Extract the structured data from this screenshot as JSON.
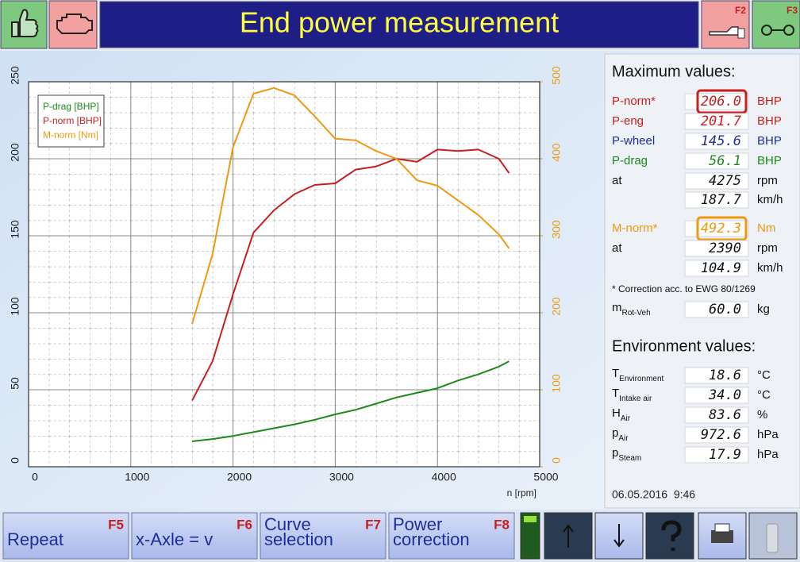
{
  "header": {
    "title": "End power measurement",
    "f2": "F2",
    "f3": "F3"
  },
  "chart_data": {
    "type": "line",
    "x_label": "n [rpm]",
    "x": [
      1600,
      1800,
      2000,
      2200,
      2400,
      2600,
      2800,
      3000,
      3200,
      3400,
      3600,
      3800,
      4000,
      4200,
      4400,
      4600,
      4700
    ],
    "series": [
      {
        "name": "P-drag [BHP]",
        "color": "#1a8a1a",
        "values": [
          16.5,
          18,
          20,
          22.5,
          25,
          27.5,
          30.5,
          34,
          37,
          41,
          45,
          48,
          51,
          56,
          60,
          65,
          68.5
        ]
      },
      {
        "name": "P-norm [BHP]",
        "color": "#c81e1e",
        "values": [
          43,
          68.5,
          112,
          152,
          166.5,
          177,
          183,
          184,
          193,
          195,
          200,
          198,
          206,
          205,
          206,
          200,
          190.7
        ]
      },
      {
        "name": "M-norm [Nm]",
        "color": "#ee9a10",
        "axis": "y2",
        "values": [
          185.6,
          276,
          415,
          484.5,
          492,
          482.5,
          455,
          426,
          424,
          410,
          400,
          372,
          365,
          346,
          327,
          302,
          283.5
        ]
      }
    ],
    "xlim": [
      0,
      5000
    ],
    "xticks": [
      0,
      1000,
      2000,
      3000,
      4000,
      5000
    ],
    "ylim": [
      0,
      250
    ],
    "yticks": [
      0,
      50,
      100,
      150,
      200,
      250
    ],
    "y2lim": [
      0,
      500
    ],
    "y2ticks": [
      0,
      100,
      200,
      300,
      400,
      500
    ],
    "y2color": "#ee9a10",
    "grid": true
  },
  "maximum": {
    "title": "Maximum values:",
    "rows": [
      {
        "label": "P-norm*",
        "value": "206.0",
        "unit": "BHP",
        "color": "#c81e1e",
        "highlight": true
      },
      {
        "label": "P-eng",
        "value": "201.7",
        "unit": "BHP",
        "color": "#c81e1e"
      },
      {
        "label": "P-wheel",
        "value": "145.6",
        "unit": "BHP",
        "color": "#1c2e9c"
      },
      {
        "label": "P-drag",
        "value": "56.1",
        "unit": "BHP",
        "color": "#1a8a1a"
      },
      {
        "label": "at",
        "value": "4275",
        "unit": "rpm",
        "color": "#111111"
      },
      {
        "label": null,
        "value": "187.7",
        "unit": "km/h",
        "color": "#111111"
      },
      {
        "label": "M-norm*",
        "value": "492.3",
        "unit": "Nm",
        "color": "#ee9a10",
        "highlight": true
      },
      {
        "label": "at",
        "value": "2390",
        "unit": "rpm",
        "color": "#111111"
      },
      {
        "label": null,
        "value": "104.9",
        "unit": "km/h",
        "color": "#111111"
      }
    ],
    "note": "* Correction acc. to EWG 80/1269",
    "mass": {
      "label": "m",
      "sub": "Rot-Veh",
      "value": "60.0",
      "unit": "kg"
    }
  },
  "environment": {
    "title": "Environment values:",
    "rows": [
      {
        "label": "T",
        "sub": "Environment",
        "value": "18.6",
        "unit": "°C"
      },
      {
        "label": "T",
        "sub": "Intake air",
        "value": "34.0",
        "unit": "°C"
      },
      {
        "label": "H",
        "sub": "Air",
        "value": "83.6",
        "unit": "%"
      },
      {
        "label": "p",
        "sub": "Air",
        "value": "972.6",
        "unit": "hPa"
      },
      {
        "label": "p",
        "sub": "Steam",
        "value": "17.9",
        "unit": "hPa"
      }
    ]
  },
  "datetime": "06.05.2016  9:46",
  "footer": {
    "buttons": [
      {
        "lines": [
          "Repeat"
        ],
        "key": "F5"
      },
      {
        "lines": [
          "x-Axle = v"
        ],
        "key": "F6"
      },
      {
        "lines": [
          "Curve",
          "selection"
        ],
        "key": "F7"
      },
      {
        "lines": [
          "Power",
          "correction"
        ],
        "key": "F8"
      }
    ]
  }
}
